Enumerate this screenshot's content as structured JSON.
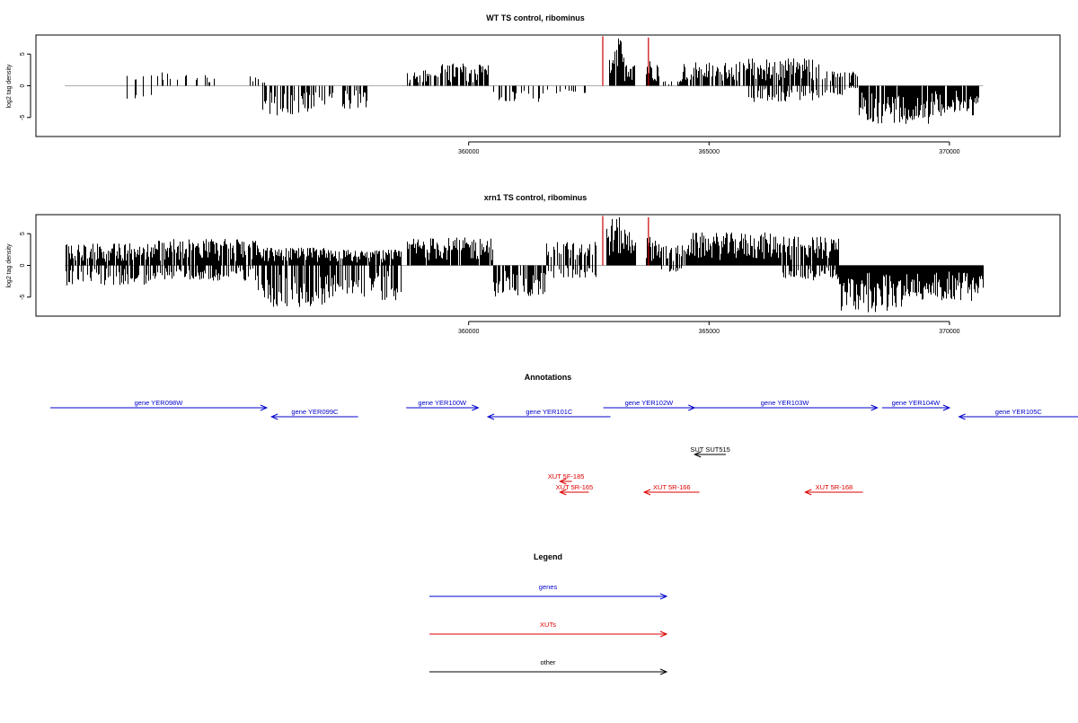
{
  "chart_data": [
    {
      "type": "bar",
      "title": "WT TS control, ribominus",
      "xlabel": "",
      "ylabel": "log2 tag density",
      "xlim": [
        351000,
        372300
      ],
      "ylim": [
        -8,
        8
      ],
      "x_ticks": [
        360000,
        365000,
        370000
      ],
      "x_tick_labels": [
        "360000",
        "365000",
        "370000"
      ],
      "y_ticks": [
        -5,
        0,
        5
      ],
      "y_tick_labels": [
        "-5",
        "0",
        "5"
      ],
      "baseline": {
        "x_start": 351600,
        "x_end": 370700
      },
      "highlight_color": "#cc0000",
      "highlights": [
        [
          362780,
          7.8
        ],
        [
          363730,
          7.6
        ]
      ],
      "segments": [
        {
          "start": 351900,
          "end": 352600,
          "density": 0.1,
          "max": 1.8
        },
        {
          "start": 352700,
          "end": 353500,
          "density": 0.12,
          "max": 2.2,
          "min": -2.6
        },
        {
          "start": 353500,
          "end": 354200,
          "density": 0.25,
          "max": 2.2
        },
        {
          "start": 354300,
          "end": 354700,
          "density": 0.25,
          "max": 1.8
        },
        {
          "start": 355400,
          "end": 355800,
          "density": 0.3,
          "max": 1.6
        },
        {
          "start": 355700,
          "end": 356900,
          "density": 0.6,
          "min": -4.8
        },
        {
          "start": 356900,
          "end": 357900,
          "density": 0.5,
          "min": -3.8
        },
        {
          "start": 358700,
          "end": 359400,
          "density": 0.5,
          "max": 2.5
        },
        {
          "start": 359400,
          "end": 360400,
          "density": 0.7,
          "max": 3.6
        },
        {
          "start": 360500,
          "end": 361600,
          "density": 0.4,
          "min": -2.6
        },
        {
          "start": 361600,
          "end": 362500,
          "density": 0.25,
          "min": -1.2
        },
        {
          "start": 362900,
          "end": 363200,
          "density": 0.9,
          "max": 7.6
        },
        {
          "start": 363200,
          "end": 363460,
          "density": 1,
          "max": 4.8
        },
        {
          "start": 363680,
          "end": 363950,
          "density": 1,
          "max": 4.2
        },
        {
          "start": 364000,
          "end": 364400,
          "density": 0.3,
          "max": 1.0
        },
        {
          "start": 364400,
          "end": 365800,
          "density": 0.75,
          "max": 3.8
        },
        {
          "start": 365800,
          "end": 367300,
          "density": 0.75,
          "max": 4.4,
          "min": -2.6
        },
        {
          "start": 367300,
          "end": 368100,
          "density": 0.4,
          "max": 2.4,
          "min": -1.6
        },
        {
          "start": 368100,
          "end": 369600,
          "density": 0.9,
          "min": -6.0
        },
        {
          "start": 369600,
          "end": 370600,
          "density": 0.9,
          "min": -4.8
        }
      ]
    },
    {
      "type": "bar",
      "title": "xrn1 TS control, ribominus",
      "xlabel": "",
      "ylabel": "log2 tag density",
      "xlim": [
        351000,
        372300
      ],
      "ylim": [
        -8,
        8
      ],
      "x_ticks": [
        360000,
        365000,
        370000
      ],
      "x_tick_labels": [
        "360000",
        "365000",
        "370000"
      ],
      "y_ticks": [
        -5,
        0,
        5
      ],
      "y_tick_labels": [
        "-5",
        "0",
        "5"
      ],
      "baseline": {
        "x_start": 351600,
        "x_end": 370700
      },
      "highlight_color": "#cc0000",
      "highlights": [
        [
          362780,
          7.8
        ],
        [
          363730,
          7.6
        ]
      ],
      "segments": [
        {
          "start": 351600,
          "end": 353400,
          "density": 0.85,
          "max": 3.5,
          "min": -3.2
        },
        {
          "start": 353400,
          "end": 355600,
          "density": 0.85,
          "max": 4.2,
          "min": -2.4
        },
        {
          "start": 355600,
          "end": 357000,
          "density": 0.95,
          "max": 2.8,
          "min": -6.6
        },
        {
          "start": 357000,
          "end": 358600,
          "density": 0.95,
          "max": 2.5,
          "min": -5.6
        },
        {
          "start": 358700,
          "end": 360500,
          "density": 0.9,
          "max": 4.4
        },
        {
          "start": 360500,
          "end": 361600,
          "density": 0.75,
          "min": -5.0
        },
        {
          "start": 361600,
          "end": 362700,
          "density": 0.5,
          "max": 3.8,
          "min": -2.0
        },
        {
          "start": 362850,
          "end": 363200,
          "density": 0.9,
          "max": 7.6
        },
        {
          "start": 363200,
          "end": 363480,
          "density": 1,
          "max": 6.2
        },
        {
          "start": 363680,
          "end": 364000,
          "density": 1,
          "max": 4.6
        },
        {
          "start": 364000,
          "end": 364500,
          "density": 0.6,
          "max": 3.2,
          "min": -1.2
        },
        {
          "start": 364500,
          "end": 366500,
          "density": 1,
          "max": 5.2
        },
        {
          "start": 366500,
          "end": 367700,
          "density": 0.85,
          "max": 4.6,
          "min": -2.4
        },
        {
          "start": 367700,
          "end": 369000,
          "density": 1,
          "min": -7.4
        },
        {
          "start": 369000,
          "end": 370700,
          "density": 1,
          "min": -5.6
        }
      ]
    }
  ],
  "annotations": {
    "title": "Annotations",
    "colors": {
      "genes": "#0000cc",
      "xuts": "#dd0000",
      "other": "#000000"
    },
    "features": [
      {
        "label": "gene YER098W",
        "kind": "genes",
        "strand": "+",
        "start": 351300,
        "end": 355800,
        "row": 0
      },
      {
        "label": "gene YER099C",
        "kind": "genes",
        "strand": "-",
        "start": 355900,
        "end": 357700,
        "row": 1
      },
      {
        "label": "gene YER100W",
        "kind": "genes",
        "strand": "+",
        "start": 358700,
        "end": 360200,
        "row": 0
      },
      {
        "label": "gene YER101C",
        "kind": "genes",
        "strand": "-",
        "start": 360400,
        "end": 362950,
        "row": 1
      },
      {
        "label": "gene YER102W",
        "kind": "genes",
        "strand": "+",
        "start": 362800,
        "end": 364700,
        "row": 0
      },
      {
        "label": "gene YER103W",
        "kind": "genes",
        "strand": "+",
        "start": 364650,
        "end": 368500,
        "row": 0
      },
      {
        "label": "gene YER104W",
        "kind": "genes",
        "strand": "+",
        "start": 368600,
        "end": 370000,
        "row": 0
      },
      {
        "label": "gene YER105C",
        "kind": "genes",
        "strand": "-",
        "start": 370200,
        "end": 377600,
        "row": 1
      },
      {
        "label": "SUT SUT515",
        "kind": "other",
        "strand": "-",
        "start": 364700,
        "end": 365350,
        "row": 2
      },
      {
        "label": "XUT 5F-185",
        "kind": "xuts",
        "strand": "-",
        "start": 361900,
        "end": 362150,
        "row": 3
      },
      {
        "label": "XUT 5R-165",
        "kind": "xuts",
        "strand": "-",
        "start": 361900,
        "end": 362500,
        "row": 4
      },
      {
        "label": "XUT 5R-166",
        "kind": "xuts",
        "strand": "-",
        "start": 363650,
        "end": 364800,
        "row": 4
      },
      {
        "label": "XUT 5R-168",
        "kind": "xuts",
        "strand": "-",
        "start": 367000,
        "end": 368200,
        "row": 4
      }
    ]
  },
  "legend": {
    "title": "Legend",
    "items": [
      {
        "label": "genes",
        "color": "#0000cc"
      },
      {
        "label": "XUTs",
        "color": "#dd0000"
      },
      {
        "label": "other",
        "color": "#000000"
      }
    ]
  }
}
